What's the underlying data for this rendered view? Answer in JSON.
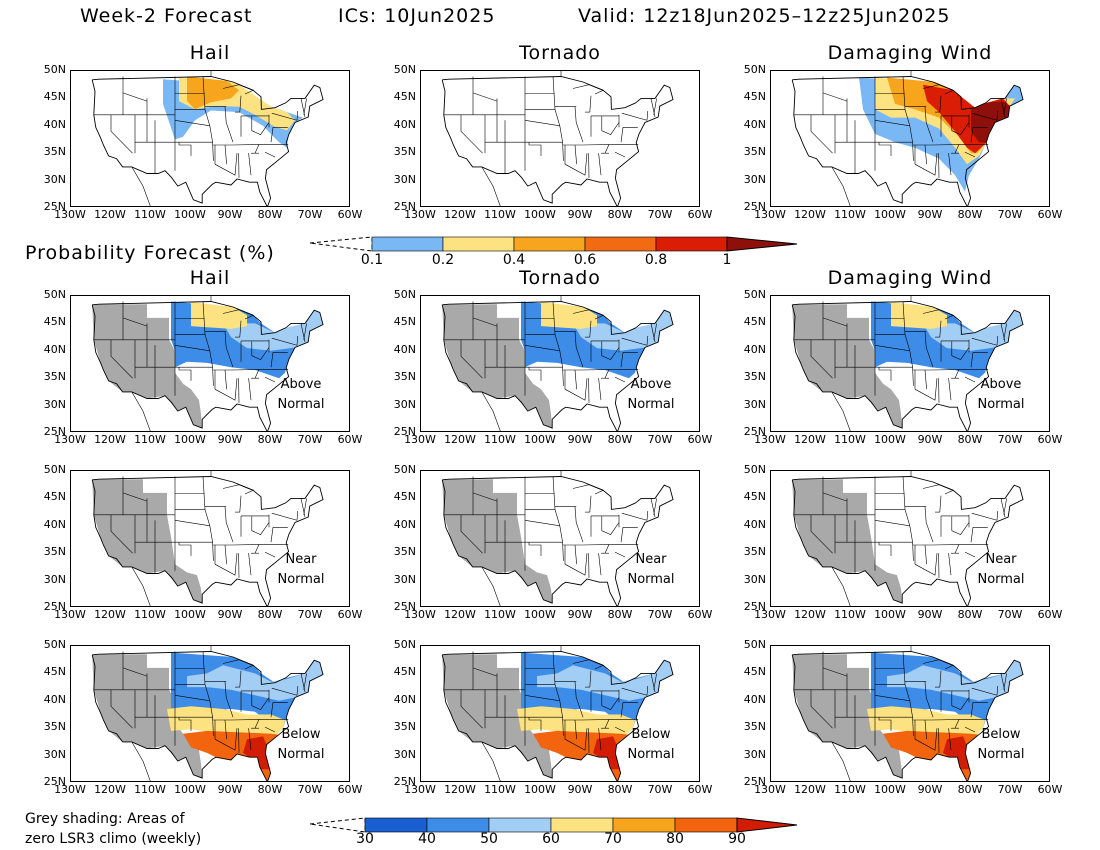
{
  "header": {
    "product": "Week-2 Forecast",
    "ics": "ICs: 10Jun2025",
    "valid": "Valid: 12z18Jun2025–12z25Jun2025"
  },
  "hazards": [
    "Hail",
    "Tornado",
    "Damaging Wind"
  ],
  "axes": {
    "lat_ticks": [
      "50N",
      "45N",
      "40N",
      "35N",
      "30N",
      "25N"
    ],
    "lon_ticks": [
      "130W",
      "120W",
      "110W",
      "100W",
      "90W",
      "80W",
      "70W",
      "60W"
    ]
  },
  "probability_section": {
    "title": "Probability Forecast (%)",
    "colorbar": {
      "labels": [
        "0.1",
        "0.2",
        "0.4",
        "0.6",
        "0.8",
        "1"
      ],
      "colors": [
        "#7ab7f5",
        "#fde281",
        "#f7a51d",
        "#f26b12",
        "#db1d06",
        "#8f0f0b"
      ]
    }
  },
  "category_rows": [
    {
      "label_line1": "Above",
      "label_line2": "Normal"
    },
    {
      "label_line1": "Near",
      "label_line2": "Normal"
    },
    {
      "label_line1": "Below",
      "label_line2": "Normal"
    }
  ],
  "category_colorbar": {
    "labels": [
      "30",
      "40",
      "50",
      "60",
      "70",
      "80",
      "90"
    ],
    "colors": [
      "#1a5fd1",
      "#3d8ce8",
      "#a2cdf5",
      "#fde281",
      "#f7a51d",
      "#f2640e",
      "#d31c04"
    ]
  },
  "footnote": {
    "line1": "Grey shading: Areas of",
    "line2": "zero LSR3 climo (weekly)"
  },
  "colors": {
    "grey_zero_climo": "#a9a9a9",
    "map_border": "#000000"
  }
}
